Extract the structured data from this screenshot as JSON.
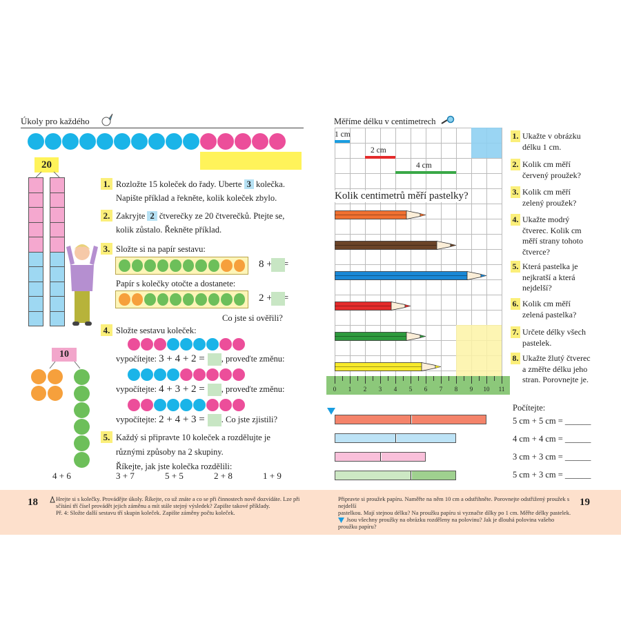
{
  "colors": {
    "blue": "#1ab4e8",
    "pink": "#ec4e9a",
    "orange": "#f6a03c",
    "green": "#6dbf5a",
    "yellow": "#fff35a",
    "footer": "#fde0cc"
  },
  "left": {
    "title": "Úkoly pro každého",
    "title_icon": "rocket-icon",
    "top_circles": [
      "blue",
      "blue",
      "blue",
      "blue",
      "blue",
      "blue",
      "blue",
      "blue",
      "blue",
      "blue",
      "pink",
      "pink",
      "pink",
      "pink",
      "pink"
    ],
    "label_20": "20",
    "label_10": "10",
    "split_10": {
      "orange": 4,
      "green": 6,
      "sum": "4 + 6"
    },
    "tasks": [
      {
        "n": "1.",
        "l1a": "Rozložte 15 koleček do řady. Uberte",
        "hl": "3",
        "l1b": "kolečka.",
        "l2": "Napište příklad a řekněte, kolik koleček zbylo."
      },
      {
        "n": "2.",
        "l1a": "Zakryjte",
        "hl": "2",
        "l1b": "čtverečky ze 20 čtverečků. Ptejte se,",
        "l2": "kolik zůstalo. Řekněte příklad."
      },
      {
        "n": "3.",
        "l1": "Složte si na papír sestavu:",
        "row1": [
          "green",
          "green",
          "green",
          "green",
          "green",
          "green",
          "green",
          "green",
          "orange",
          "orange"
        ],
        "eq1": "8 + 2 =",
        "l2": "Papír s kolečky otočte a dostanete:",
        "row2": [
          "orange",
          "orange",
          "green",
          "green",
          "green",
          "green",
          "green",
          "green",
          "green",
          "green"
        ],
        "eq2": "2 + 8 =",
        "q": "Co jste si ověřili?"
      },
      {
        "n": "4.",
        "l1": "Složte sestavu koleček:",
        "rows": [
          {
            "c": [
              "pink",
              "pink",
              "pink",
              "blue",
              "blue",
              "blue",
              "blue",
              "pink",
              "pink"
            ],
            "pre": "vypočítejte:",
            "eq": "3 + 4 + 2 =",
            "post": ", proveďte změnu:"
          },
          {
            "c": [
              "blue",
              "blue",
              "blue",
              "blue",
              "pink",
              "pink",
              "pink",
              "pink",
              "pink"
            ],
            "pre": "vypočítejte:",
            "eq": "4 + 3 + 2 =",
            "post": ", proveďte změnu:"
          },
          {
            "c": [
              "pink",
              "pink",
              "blue",
              "blue",
              "blue",
              "blue",
              "pink",
              "pink",
              "pink"
            ],
            "pre": "vypočítejte:",
            "eq": "2 + 4 + 3 =",
            "post": ".  Co jste zjistili?"
          }
        ]
      },
      {
        "n": "5.",
        "l1": "Každý si připravte 10 koleček a rozdělujte je",
        "l2": "různými způsoby na 2 skupiny.",
        "l3": "Říkejte, jak jste kolečka rozdělili:",
        "sums": [
          "3 + 7",
          "5 + 5",
          "2 + 8",
          "1 + 9"
        ]
      }
    ],
    "footer": {
      "page": "18",
      "l1": "Hrejte si s kolečky. Provádějte úkoly. Říkejte, co už znáte a co se při činnostech nově dozvídáte. Lze při",
      "l2": "sčítání tří čísel provádět jejich záměnu a mít stále stejný výsledek? Zapište takové příklady.",
      "l3": "Př. 4: Složte další sestavu tří skupin koleček. Zapište záměny počtu koleček."
    }
  },
  "right": {
    "title": "Měříme délku v centimetrech",
    "title_icon": "magnifier-icon",
    "bars": [
      {
        "label": "1 cm",
        "cm": 1,
        "start": 0,
        "color": "#1a9de0"
      },
      {
        "label": "2 cm",
        "cm": 2,
        "start": 2,
        "color": "#e42b2b"
      },
      {
        "label": "4 cm",
        "cm": 4,
        "start": 4,
        "color": "#3aa847"
      }
    ],
    "question": "Kolik centimetrů měří pastelky?",
    "pencils": [
      {
        "color": "#f07030",
        "cm": 6
      },
      {
        "color": "#6b4428",
        "cm": 8
      },
      {
        "color": "#1a88d6",
        "cm": 10
      },
      {
        "color": "#e42b2b",
        "cm": 5
      },
      {
        "color": "#2e9a3e",
        "cm": 6
      },
      {
        "color": "#f8ea2a",
        "cm": 7
      }
    ],
    "ruler_labels": [
      "0",
      "1",
      "2",
      "3",
      "4",
      "5",
      "6",
      "7",
      "8",
      "9",
      "10",
      "11"
    ],
    "tasks": [
      {
        "n": "1.",
        "lines": [
          "Ukažte v obrázku",
          "délku 1 cm."
        ]
      },
      {
        "n": "2.",
        "lines": [
          "Kolik cm měří",
          "červený proužek?"
        ]
      },
      {
        "n": "3.",
        "lines": [
          "Kolik cm měří",
          "zelený proužek?"
        ]
      },
      {
        "n": "4.",
        "lines": [
          "Ukažte modrý",
          "čtverec. Kolik cm",
          "měří strany tohoto",
          "čtverce?"
        ]
      },
      {
        "n": "5.",
        "lines": [
          "Která pastelka je",
          "nejkratší a která",
          "nejdelší?"
        ]
      },
      {
        "n": "6.",
        "lines": [
          "Kolik cm měří",
          "zelená pastelka?"
        ]
      },
      {
        "n": "7.",
        "lines": [
          "Určete délky všech",
          "pastelek."
        ]
      },
      {
        "n": "8.",
        "lines": [
          "Ukažte žlutý čtverec",
          "a změřte délku jeho",
          "stran. Porovnejte je."
        ]
      }
    ],
    "strips": [
      {
        "cm": 10,
        "split": 5,
        "c1": "#f4836a",
        "c2": "#f4836a"
      },
      {
        "cm": 8,
        "split": 4,
        "c1": "#bde3f6",
        "c2": "#bde3f6"
      },
      {
        "cm": 6,
        "split": 3,
        "c1": "#f9c0da",
        "c2": "#f9c0da"
      },
      {
        "cm": 8,
        "split": 5,
        "c1": "#cde8c4",
        "c2": "#9fd18f"
      }
    ],
    "count_title": "Počítejte:",
    "equations": [
      "5 cm + 5 cm = ______",
      "4 cm + 4 cm = ______",
      "3 cm + 3 cm = ______",
      "5 cm + 3 cm = ______"
    ],
    "footer": {
      "page": "19",
      "l1": "Připravte si proužek papíru. Naměřte na něm 10 cm a odstřihněte. Porovnejte odstřižený proužek s nejdelší",
      "l2": "pastelkou. Mají stejnou délku? Na proužku papíru si vyznačte dílky po 1 cm. Měřte délky pastelek.",
      "l3": "Jsou všechny proužky na obrázku rozděleny na polovinu? Jak je dlouhá polovina vašeho proužku papíru?"
    }
  }
}
